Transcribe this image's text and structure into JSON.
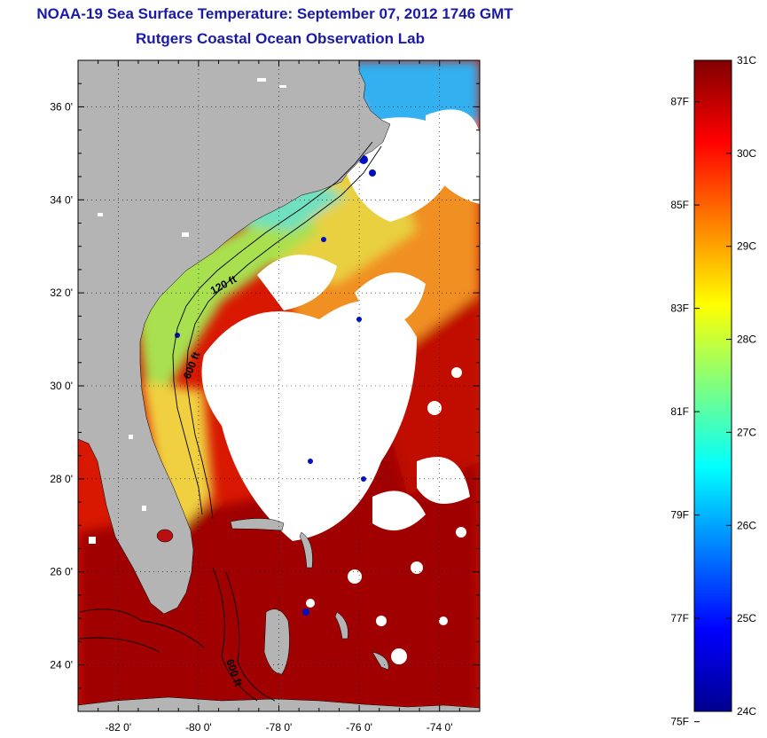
{
  "title": "NOAA-19 Sea Surface Temperature:  September 07, 2012 1746 GMT",
  "subtitle": "Rutgers Coastal Ocean Observation Lab",
  "map": {
    "lon_range": [
      -83,
      -73
    ],
    "lat_range": [
      23,
      37
    ],
    "lat_labels": [
      "36 0'",
      "34 0'",
      "32 0'",
      "30 0'",
      "28 0'",
      "26 0'",
      "24 0'"
    ],
    "lat_values": [
      36,
      34,
      32,
      30,
      28,
      26,
      24
    ],
    "lon_labels": [
      "-82 0'",
      "-80 0'",
      "-78 0'",
      "-76 0'",
      "-74 0'"
    ],
    "lon_values": [
      -82,
      -80,
      -78,
      -76,
      -74
    ],
    "isobath_labels": [
      "120 ft",
      "600 ft",
      "600 ft"
    ],
    "land_color": "#b4b4b4",
    "cloud_color": "#ffffff"
  },
  "colorbar": {
    "c_labels": [
      "31C",
      "30C",
      "29C",
      "28C",
      "27C",
      "26C",
      "25C",
      "24C"
    ],
    "c_values": [
      31,
      30,
      29,
      28,
      27,
      26,
      25,
      24
    ],
    "f_labels": [
      "87F",
      "85F",
      "83F",
      "81F",
      "79F",
      "77F",
      "75F"
    ],
    "f_values": [
      87,
      85,
      83,
      81,
      79,
      77,
      75
    ],
    "range_c": [
      24,
      31
    ],
    "colormap": "jet"
  }
}
